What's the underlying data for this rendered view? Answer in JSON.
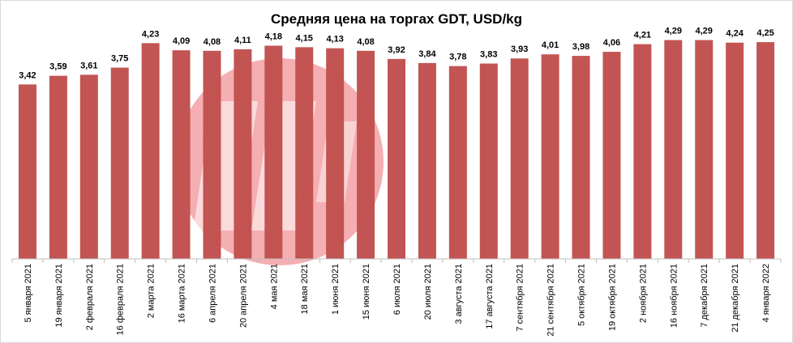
{
  "chart_data": {
    "type": "bar",
    "title": "Средняя цена на торгах GDT, USD/kg",
    "xlabel": "",
    "ylabel": "",
    "ylim": [
      0,
      4.6
    ],
    "grid": false,
    "legend": "none",
    "bar_color": "#c0504d",
    "watermark_color": "#f4a5a8",
    "categories": [
      "5 января 2021",
      "19 января 2021",
      "2 февраля 2021",
      "16 февраля 2021",
      "2 марта 2021",
      "16 марта 2021",
      "6 апреля 2021",
      "20 апреля 2021",
      "4 мая 2021",
      "18 мая 2021",
      "1 июня 2021",
      "15 июня 2021",
      "6 июля 2021",
      "20 июля 2021",
      "3 августа 2021",
      "17 августа 2021",
      "7 сентября 2021",
      "21 сентября 2021",
      "5 октября 2021",
      "19 октября 2021",
      "2 ноября 2021",
      "16 ноября 2021",
      "7 декабря 2021",
      "21 декабря 2021",
      "4 января 2022"
    ],
    "values": [
      3.42,
      3.59,
      3.61,
      3.75,
      4.23,
      4.09,
      4.08,
      4.11,
      4.18,
      4.15,
      4.13,
      4.08,
      3.92,
      3.84,
      3.78,
      3.83,
      3.93,
      4.01,
      3.98,
      4.06,
      4.21,
      4.29,
      4.29,
      4.24,
      4.25
    ],
    "value_labels": [
      "3,42",
      "3,59",
      "3,61",
      "3,75",
      "4,23",
      "4,09",
      "4,08",
      "4,11",
      "4,18",
      "4,15",
      "4,13",
      "4,08",
      "3,92",
      "3,84",
      "3,78",
      "3,83",
      "3,93",
      "4,01",
      "3,98",
      "4,06",
      "4,21",
      "4,29",
      "4,29",
      "4,24",
      "4,25"
    ]
  }
}
